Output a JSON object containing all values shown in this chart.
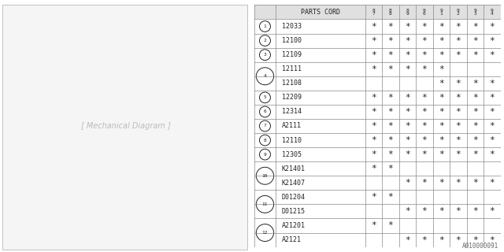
{
  "watermark": "A010000091",
  "table": {
    "header_col": "PARTS CORD",
    "year_cols": [
      "8\n7",
      "8\n8",
      "8\n9",
      "9\n0",
      "9\n1",
      "9\n2",
      "9\n3",
      "9\n4"
    ],
    "rows": [
      {
        "num": "1",
        "parts": [
          "12033"
        ],
        "marks": [
          [
            "*",
            "*",
            "*",
            "*",
            "*",
            "*",
            "*",
            "*"
          ]
        ]
      },
      {
        "num": "2",
        "parts": [
          "12100"
        ],
        "marks": [
          [
            "*",
            "*",
            "*",
            "*",
            "*",
            "*",
            "*",
            "*"
          ]
        ]
      },
      {
        "num": "3",
        "parts": [
          "12109"
        ],
        "marks": [
          [
            "*",
            "*",
            "*",
            "*",
            "*",
            "*",
            "*",
            "*"
          ]
        ]
      },
      {
        "num": "4",
        "parts": [
          "12111",
          "12108"
        ],
        "marks": [
          [
            "*",
            "*",
            "*",
            "*",
            "*",
            "",
            "",
            ""
          ],
          [
            "",
            "",
            "",
            "",
            "*",
            "*",
            "*",
            "*"
          ]
        ]
      },
      {
        "num": "5",
        "parts": [
          "12209"
        ],
        "marks": [
          [
            "*",
            "*",
            "*",
            "*",
            "*",
            "*",
            "*",
            "*"
          ]
        ]
      },
      {
        "num": "6",
        "parts": [
          "12314"
        ],
        "marks": [
          [
            "*",
            "*",
            "*",
            "*",
            "*",
            "*",
            "*",
            "*"
          ]
        ]
      },
      {
        "num": "7",
        "parts": [
          "A2111"
        ],
        "marks": [
          [
            "*",
            "*",
            "*",
            "*",
            "*",
            "*",
            "*",
            "*"
          ]
        ]
      },
      {
        "num": "8",
        "parts": [
          "12110"
        ],
        "marks": [
          [
            "*",
            "*",
            "*",
            "*",
            "*",
            "*",
            "*",
            "*"
          ]
        ]
      },
      {
        "num": "9",
        "parts": [
          "12305"
        ],
        "marks": [
          [
            "*",
            "*",
            "*",
            "*",
            "*",
            "*",
            "*",
            "*"
          ]
        ]
      },
      {
        "num": "10",
        "parts": [
          "K21401",
          "K21407"
        ],
        "marks": [
          [
            "*",
            "*",
            "",
            "",
            "",
            "",
            "",
            ""
          ],
          [
            "",
            "",
            "*",
            "*",
            "*",
            "*",
            "*",
            "*"
          ]
        ]
      },
      {
        "num": "11",
        "parts": [
          "D01204",
          "D01215"
        ],
        "marks": [
          [
            "*",
            "*",
            "",
            "",
            "",
            "",
            "",
            ""
          ],
          [
            "",
            "",
            "*",
            "*",
            "*",
            "*",
            "*",
            "*"
          ]
        ]
      },
      {
        "num": "12",
        "parts": [
          "A21201",
          "A2121"
        ],
        "marks": [
          [
            "*",
            "*",
            "",
            "",
            "",
            "",
            "",
            ""
          ],
          [
            "",
            "",
            "*",
            "*",
            "*",
            "*",
            "*",
            "*"
          ]
        ]
      }
    ]
  },
  "bg_color": "#ffffff",
  "line_color": "#888888",
  "text_color": "#222222",
  "font_size": 6.0
}
